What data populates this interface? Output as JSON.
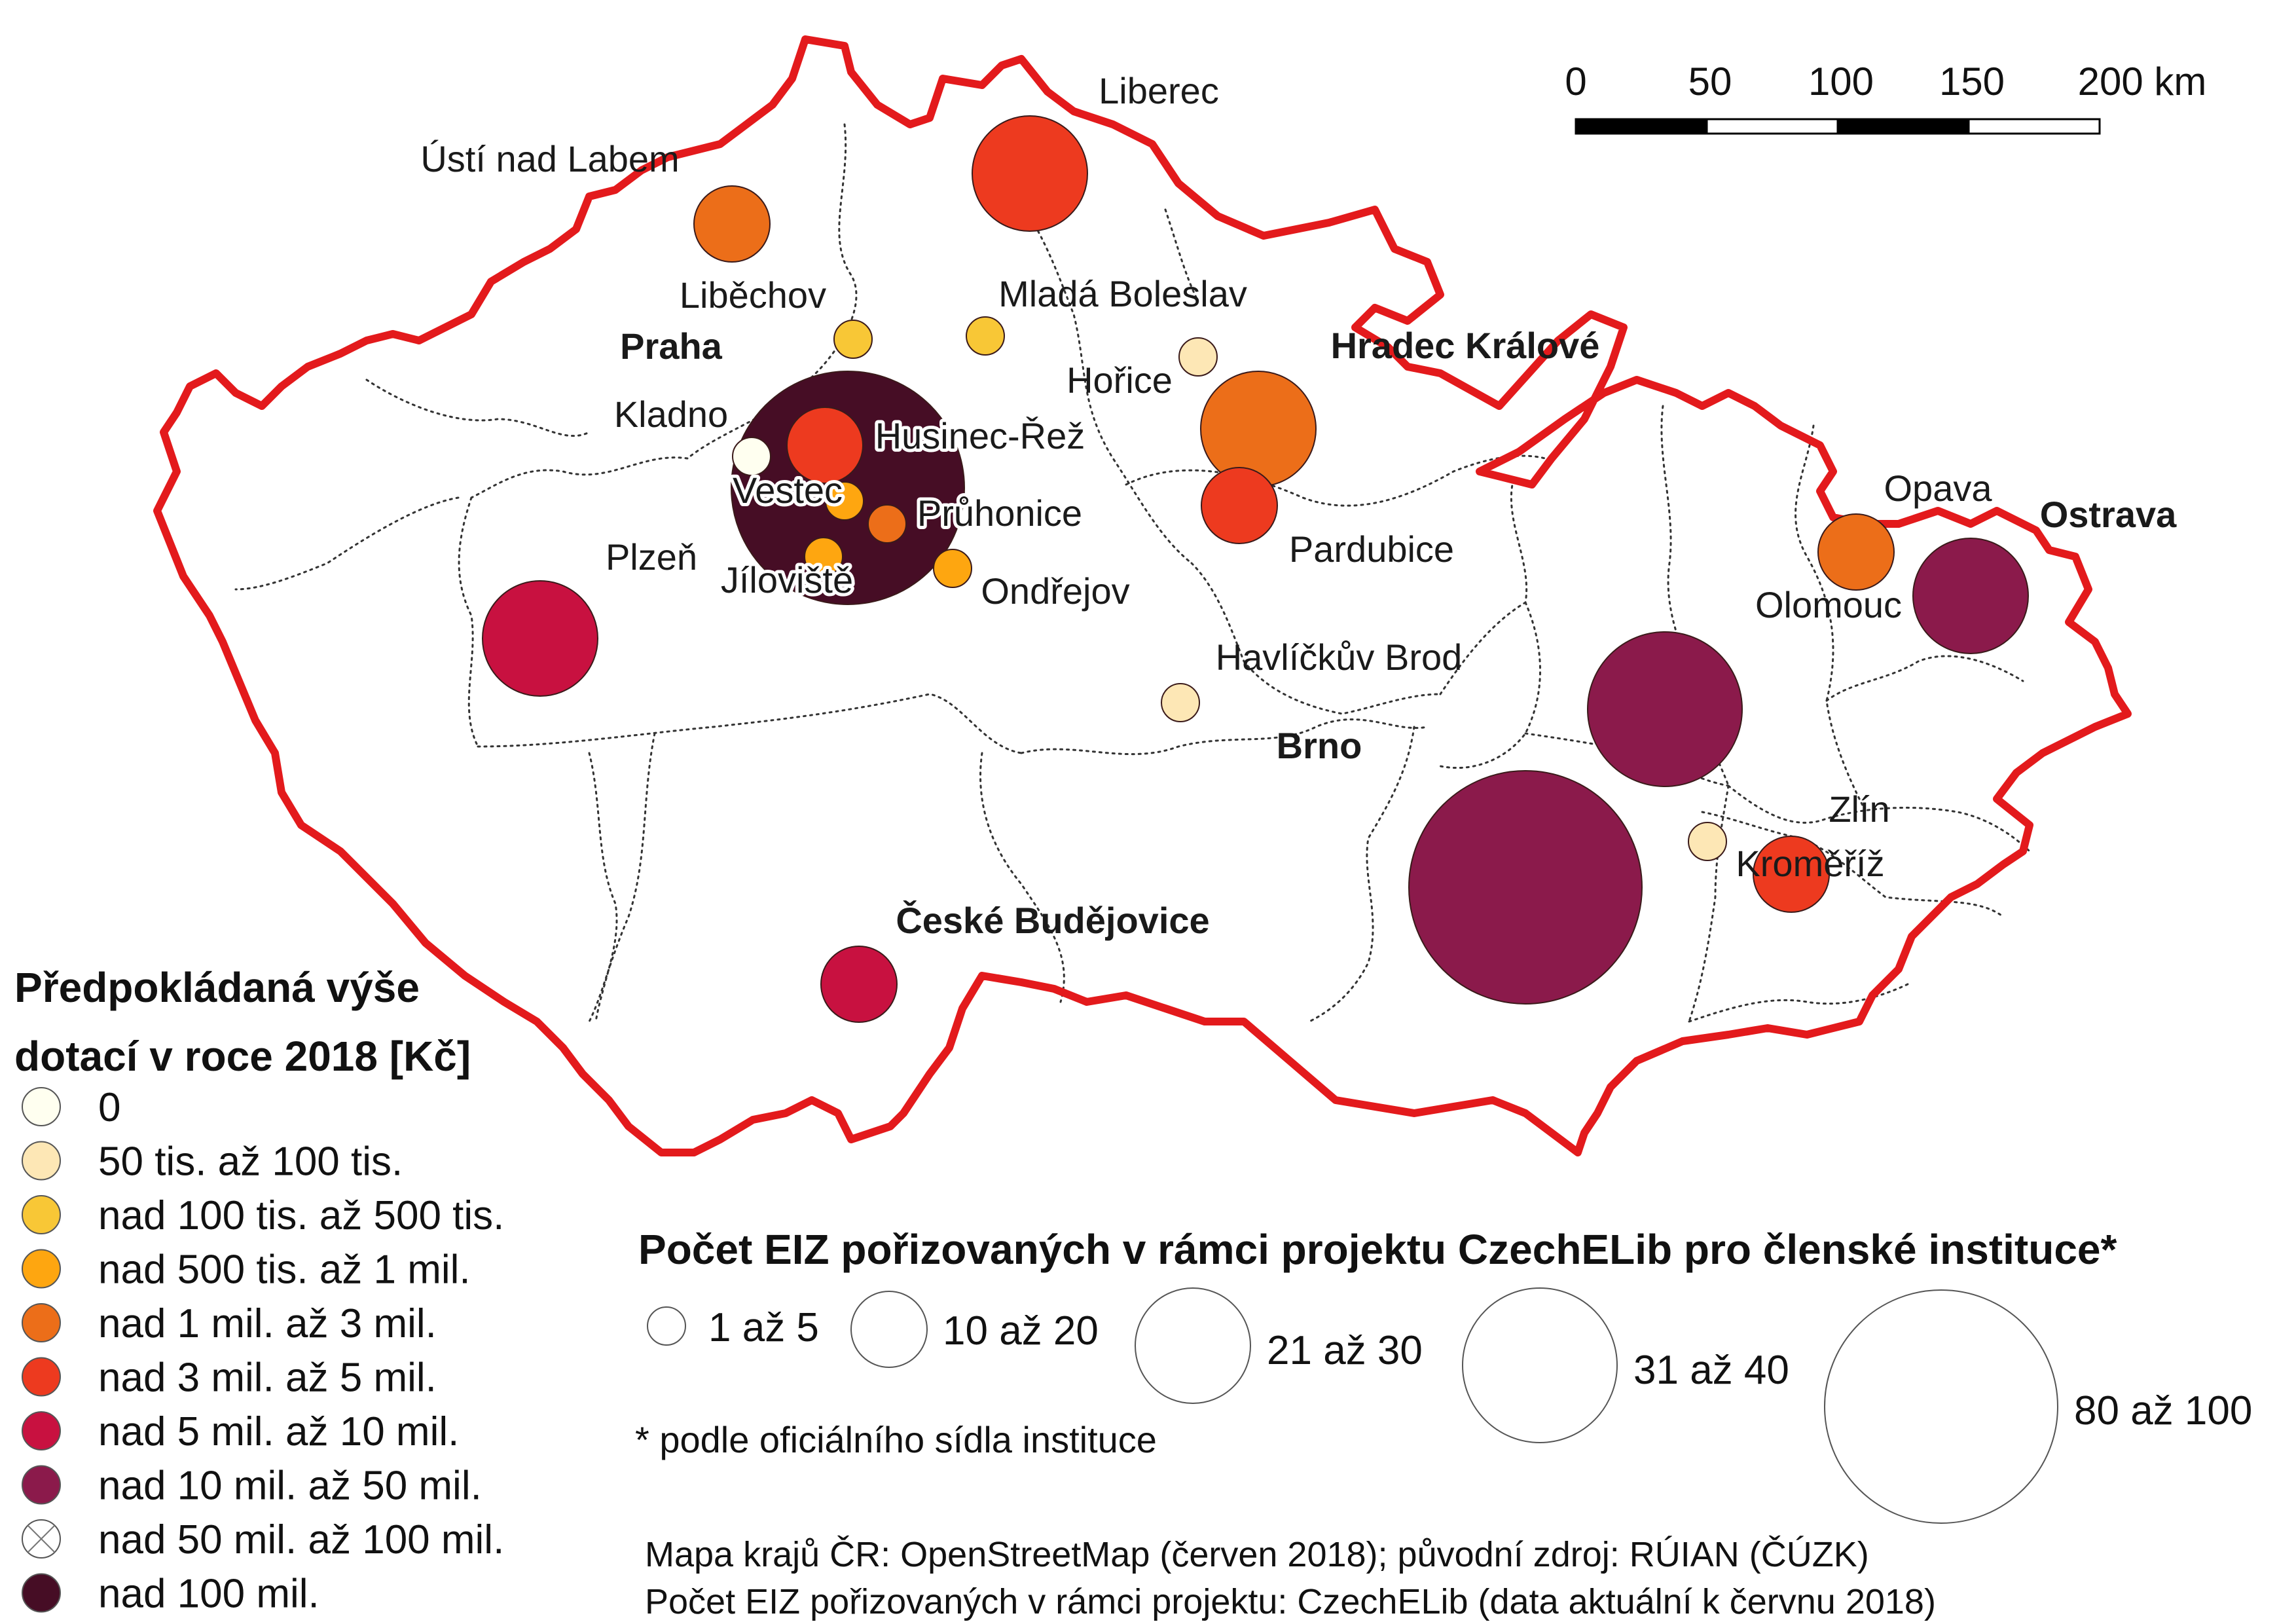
{
  "map": {
    "border_color": "#e31a1c",
    "scale_bar": {
      "ticks": [
        "0",
        "50",
        "100",
        "150",
        "200 km"
      ]
    },
    "capitals": [
      {
        "id": "praha",
        "label": "Praha"
      },
      {
        "id": "hradec",
        "label": "Hradec Králové"
      },
      {
        "id": "ostrava",
        "label": "Ostrava"
      },
      {
        "id": "brno",
        "label": "Brno"
      },
      {
        "id": "budejovice",
        "label": "České Budějovice"
      }
    ],
    "institutions": [
      {
        "id": "liberec",
        "label": "Liberec",
        "funding_class": 5,
        "eiz_size_class": 3
      },
      {
        "id": "usti",
        "label": "Ústí nad Labem",
        "funding_class": 4,
        "eiz_size_class": 2
      },
      {
        "id": "libechov",
        "label": "Liběchov",
        "funding_class": 2,
        "eiz_size_class": 1
      },
      {
        "id": "mlada",
        "label": "Mladá Boleslav",
        "funding_class": 2,
        "eiz_size_class": 1
      },
      {
        "id": "horice",
        "label": "Hořice",
        "funding_class": 1,
        "eiz_size_class": 1
      },
      {
        "id": "hk",
        "label": "",
        "funding_class": 4,
        "eiz_size_class": 3
      },
      {
        "id": "praha-big",
        "label": "",
        "funding_class": 9,
        "eiz_size_class": 5
      },
      {
        "id": "kladno",
        "label": "Kladno",
        "funding_class": 0,
        "eiz_size_class": 1
      },
      {
        "id": "husinec",
        "label": "Husinec-Řež",
        "funding_class": 5,
        "eiz_size_class": 2
      },
      {
        "id": "vestec",
        "label": "Vestec",
        "funding_class": 3,
        "eiz_size_class": 1
      },
      {
        "id": "pruhonice",
        "label": "Průhonice",
        "funding_class": 4,
        "eiz_size_class": 1
      },
      {
        "id": "jiloviste",
        "label": "Jíloviště",
        "funding_class": 3,
        "eiz_size_class": 1
      },
      {
        "id": "ondrejov",
        "label": "Ondřejov",
        "funding_class": 3,
        "eiz_size_class": 1
      },
      {
        "id": "pardubice",
        "label": "Pardubice",
        "funding_class": 5,
        "eiz_size_class": 2
      },
      {
        "id": "plzen",
        "label": "Plzeň",
        "funding_class": 6,
        "eiz_size_class": 3
      },
      {
        "id": "havlickuv",
        "label": "Havlíčkův Brod",
        "funding_class": 1,
        "eiz_size_class": 1
      },
      {
        "id": "opava",
        "label": "Opava",
        "funding_class": 4,
        "eiz_size_class": 2
      },
      {
        "id": "ostrava-b",
        "label": "",
        "funding_class": 7,
        "eiz_size_class": 3
      },
      {
        "id": "olomouc",
        "label": "Olomouc",
        "funding_class": 7,
        "eiz_size_class": 4
      },
      {
        "id": "brno-b",
        "label": "",
        "funding_class": 7,
        "eiz_size_class": 5
      },
      {
        "id": "zlin",
        "label": "Zlín",
        "funding_class": 1,
        "eiz_size_class": 1
      },
      {
        "id": "kromeriz",
        "label": "Kroměříž",
        "funding_class": 5,
        "eiz_size_class": 2
      },
      {
        "id": "cb",
        "label": "",
        "funding_class": 6,
        "eiz_size_class": 2
      }
    ]
  },
  "legend_funding": {
    "title_line1": "Předpokládaná výše",
    "title_line2": "dotací v roce 2018 [Kč]",
    "items": [
      {
        "label": "0",
        "color": "#fffff0"
      },
      {
        "label": "50 tis. až 100 tis.",
        "color": "#fde7b5"
      },
      {
        "label": "nad 100 tis. až 500 tis.",
        "color": "#f8c736"
      },
      {
        "label": "nad 500 tis. až 1 mil.",
        "color": "#fea610"
      },
      {
        "label": "nad 1 mil. až 3 mil.",
        "color": "#ec6e19"
      },
      {
        "label": "nad 3 mil. až 5 mil.",
        "color": "#ed3a1f"
      },
      {
        "label": "nad 5 mil. až 10 mil.",
        "color": "#c81140"
      },
      {
        "label": "nad 10 mil. až 50 mil.",
        "color": "#8b1a4b"
      },
      {
        "label": "nad 50 mil. až 100 mil.",
        "color": "#ffffff",
        "crossed": true
      },
      {
        "label": "nad 100 mil.",
        "color": "#460d25"
      }
    ]
  },
  "legend_size": {
    "title": "Počet EIZ pořizovaných v rámci projektu CzechELib pro členské instituce*",
    "items": [
      {
        "label": "1 až 5"
      },
      {
        "label": "10 až 20"
      },
      {
        "label": "21 až 30"
      },
      {
        "label": "31 až 40"
      },
      {
        "label": "80 až 100"
      }
    ],
    "note": "* podle oficiálního sídla instituce"
  },
  "sources": {
    "line1": "Mapa krajů ČR: OpenStreetMap (červen 2018); původní zdroj: RÚIAN (ČÚZK)",
    "line2": "Počet EIZ pořizovaných v rámci projektu: CzechELib (data aktuální k červnu 2018)"
  }
}
